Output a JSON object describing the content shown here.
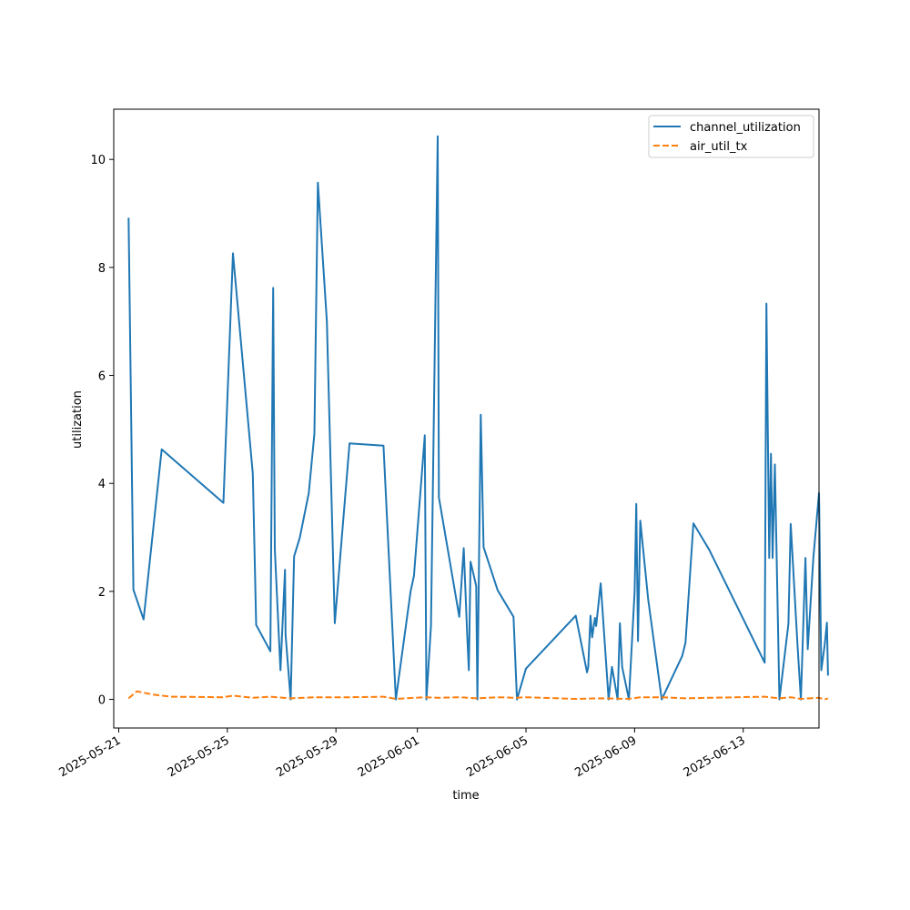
{
  "chart_data": {
    "type": "line",
    "title": "",
    "xlabel": "time",
    "ylabel": "utilization",
    "x_ticks": [
      "2025-05-21",
      "2025-05-25",
      "2025-05-29",
      "2025-06-01",
      "2025-06-05",
      "2025-06-09",
      "2025-06-13"
    ],
    "y_ticks": [
      "0",
      "2",
      "4",
      "6",
      "8",
      "10"
    ],
    "xlim": [
      "2025-05-20T19:36",
      "2025-06-15T19:00"
    ],
    "ylim": [
      -0.53,
      10.93
    ],
    "grid": false,
    "legend_position": "top-right",
    "series": [
      {
        "name": "channel_utilization",
        "color": "#1f77b4",
        "style": "solid",
        "points": [
          [
            "2025-05-21T08:45",
            8.92
          ],
          [
            "2025-05-21T13:00",
            2.03
          ],
          [
            "2025-05-21T22:00",
            1.48
          ],
          [
            "2025-05-22T14:00",
            4.63
          ],
          [
            "2025-05-24T20:30",
            3.64
          ],
          [
            "2025-05-25T05:00",
            8.26
          ],
          [
            "2025-05-25T22:30",
            4.18
          ],
          [
            "2025-05-26T01:30",
            1.38
          ],
          [
            "2025-05-26T14:00",
            0.89
          ],
          [
            "2025-05-26T16:30",
            7.62
          ],
          [
            "2025-05-26T18:00",
            2.78
          ],
          [
            "2025-05-26T23:00",
            0.54
          ],
          [
            "2025-05-27T03:00",
            2.4
          ],
          [
            "2025-05-27T03:30",
            1.2
          ],
          [
            "2025-05-27T08:00",
            0.0
          ],
          [
            "2025-05-27T11:00",
            2.65
          ],
          [
            "2025-05-27T16:00",
            2.99
          ],
          [
            "2025-05-28T00:00",
            3.82
          ],
          [
            "2025-05-28T05:00",
            4.92
          ],
          [
            "2025-05-28T08:00",
            9.57
          ],
          [
            "2025-05-28T16:00",
            7.0
          ],
          [
            "2025-05-28T23:00",
            1.41
          ],
          [
            "2025-05-29T12:00",
            4.74
          ],
          [
            "2025-05-30T18:00",
            4.7
          ],
          [
            "2025-05-31T05:00",
            0.0
          ],
          [
            "2025-05-31T18:00",
            2.0
          ],
          [
            "2025-05-31T21:00",
            2.29
          ],
          [
            "2025-06-01T06:30",
            4.89
          ],
          [
            "2025-06-01T08:00",
            0.0
          ],
          [
            "2025-06-01T12:00",
            1.36
          ],
          [
            "2025-06-01T18:00",
            10.43
          ],
          [
            "2025-06-01T19:00",
            3.74
          ],
          [
            "2025-06-02T13:00",
            1.53
          ],
          [
            "2025-06-02T17:00",
            2.8
          ],
          [
            "2025-06-02T20:00",
            1.2
          ],
          [
            "2025-06-02T21:30",
            0.54
          ],
          [
            "2025-06-02T23:00",
            2.55
          ],
          [
            "2025-06-03T04:00",
            2.1
          ],
          [
            "2025-06-03T05:00",
            0.0
          ],
          [
            "2025-06-03T08:00",
            5.27
          ],
          [
            "2025-06-03T10:30",
            2.82
          ],
          [
            "2025-06-03T23:00",
            2.02
          ],
          [
            "2025-06-04T13:00",
            1.53
          ],
          [
            "2025-06-04T16:00",
            0.0
          ],
          [
            "2025-06-05T00:00",
            0.57
          ],
          [
            "2025-06-06T20:00",
            1.55
          ],
          [
            "2025-06-07T06:00",
            0.5
          ],
          [
            "2025-06-07T07:00",
            0.6
          ],
          [
            "2025-06-07T09:00",
            1.55
          ],
          [
            "2025-06-07T10:30",
            1.15
          ],
          [
            "2025-06-07T13:00",
            1.51
          ],
          [
            "2025-06-07T14:00",
            1.36
          ],
          [
            "2025-06-07T18:00",
            2.15
          ],
          [
            "2025-06-08T01:00",
            0.0
          ],
          [
            "2025-06-08T04:00",
            0.6
          ],
          [
            "2025-06-08T09:00",
            0.0
          ],
          [
            "2025-06-08T11:00",
            1.41
          ],
          [
            "2025-06-08T13:00",
            0.6
          ],
          [
            "2025-06-08T19:00",
            0.0
          ],
          [
            "2025-06-09T00:00",
            2.0
          ],
          [
            "2025-06-09T01:30",
            3.62
          ],
          [
            "2025-06-09T03:00",
            1.08
          ],
          [
            "2025-06-09T05:00",
            3.31
          ],
          [
            "2025-06-09T12:00",
            1.85
          ],
          [
            "2025-06-10T00:00",
            0.0
          ],
          [
            "2025-06-10T18:00",
            0.8
          ],
          [
            "2025-06-10T21:00",
            1.05
          ],
          [
            "2025-06-11T04:00",
            3.26
          ],
          [
            "2025-06-11T18:00",
            2.77
          ],
          [
            "2025-06-13T19:00",
            0.68
          ],
          [
            "2025-06-13T20:30",
            7.33
          ],
          [
            "2025-06-13T23:00",
            2.62
          ],
          [
            "2025-06-14T00:30",
            4.55
          ],
          [
            "2025-06-14T02:00",
            2.62
          ],
          [
            "2025-06-14T04:00",
            4.35
          ],
          [
            "2025-06-14T08:00",
            0.0
          ],
          [
            "2025-06-14T16:00",
            1.4
          ],
          [
            "2025-06-14T18:00",
            3.25
          ],
          [
            "2025-06-15T00:00",
            1.0
          ],
          [
            "2025-06-15T03:00",
            0.0
          ],
          [
            "2025-06-15T07:00",
            2.62
          ],
          [
            "2025-06-15T09:00",
            0.93
          ],
          [
            "2025-06-15T14:00",
            2.62
          ],
          [
            "2025-06-15T19:00",
            3.82
          ],
          [
            "2025-06-15T21:00",
            0.54
          ],
          [
            "2025-06-16T00:00",
            1.0
          ],
          [
            "2025-06-16T02:00",
            1.42
          ],
          [
            "2025-06-16T03:00",
            0.44
          ]
        ]
      },
      {
        "name": "air_util_tx",
        "color": "#ff7f0e",
        "style": "dashed",
        "points": [
          [
            "2025-05-21T08:45",
            0.02
          ],
          [
            "2025-05-21T16:00",
            0.15
          ],
          [
            "2025-05-22T06:00",
            0.09
          ],
          [
            "2025-05-22T22:00",
            0.05
          ],
          [
            "2025-05-24T20:30",
            0.04
          ],
          [
            "2025-05-25T05:00",
            0.07
          ],
          [
            "2025-05-25T22:30",
            0.03
          ],
          [
            "2025-05-26T14:00",
            0.05
          ],
          [
            "2025-05-27T08:00",
            0.02
          ],
          [
            "2025-05-28T05:00",
            0.04
          ],
          [
            "2025-05-29T12:00",
            0.04
          ],
          [
            "2025-05-30T18:00",
            0.05
          ],
          [
            "2025-05-31T05:00",
            0.01
          ],
          [
            "2025-06-01T06:30",
            0.04
          ],
          [
            "2025-06-01T18:00",
            0.03
          ],
          [
            "2025-06-02T13:00",
            0.04
          ],
          [
            "2025-06-03T05:00",
            0.02
          ],
          [
            "2025-06-03T23:00",
            0.04
          ],
          [
            "2025-06-04T16:00",
            0.03
          ],
          [
            "2025-06-05T00:00",
            0.04
          ],
          [
            "2025-06-06T20:00",
            0.01
          ],
          [
            "2025-06-07T18:00",
            0.02
          ],
          [
            "2025-06-08T19:00",
            0.01
          ],
          [
            "2025-06-09T05:00",
            0.04
          ],
          [
            "2025-06-10T00:00",
            0.04
          ],
          [
            "2025-06-10T21:00",
            0.02
          ],
          [
            "2025-06-11T18:00",
            0.03
          ],
          [
            "2025-06-13T19:00",
            0.05
          ],
          [
            "2025-06-14T08:00",
            0.02
          ],
          [
            "2025-06-14T18:00",
            0.04
          ],
          [
            "2025-06-15T03:00",
            0.01
          ],
          [
            "2025-06-15T19:00",
            0.03
          ],
          [
            "2025-06-16T00:00",
            0.0
          ],
          [
            "2025-06-16T03:00",
            0.02
          ]
        ]
      }
    ]
  }
}
